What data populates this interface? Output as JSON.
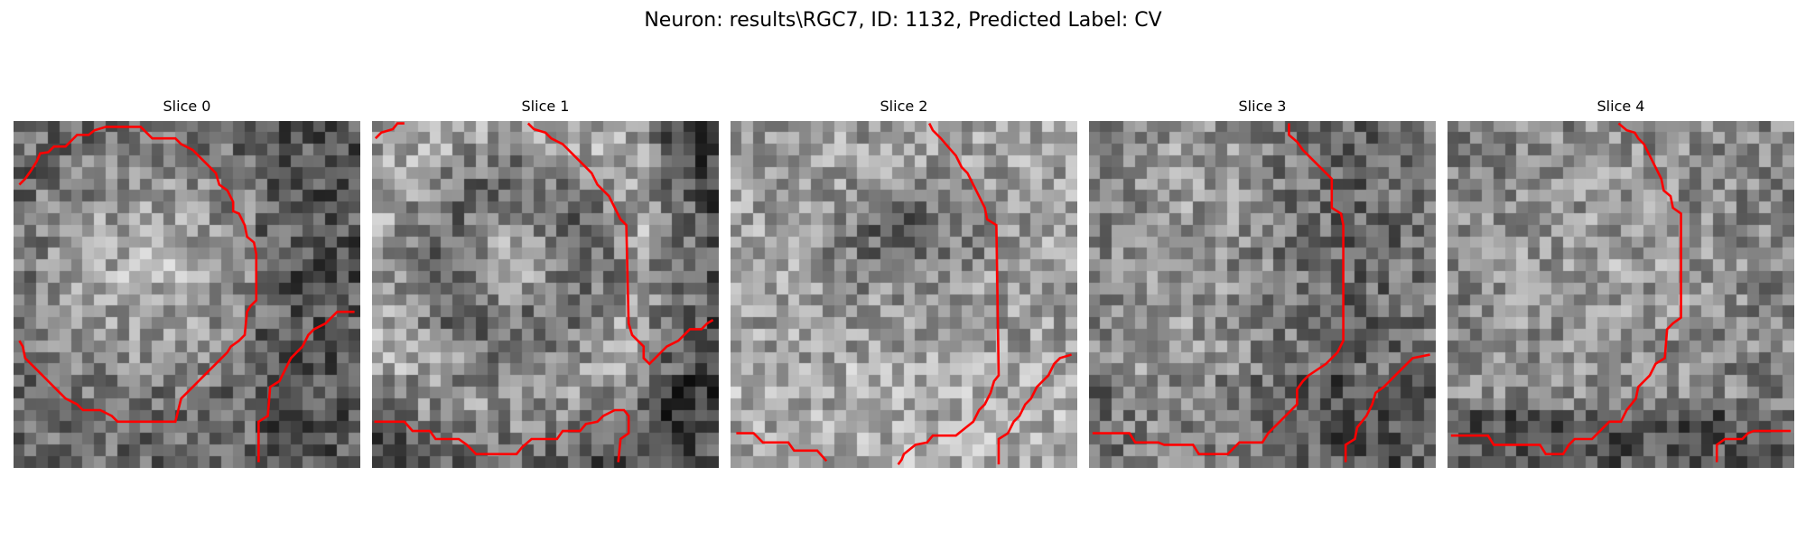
{
  "figure": {
    "title": "Neuron: results\\RGC7, ID: 1132, Predicted Label: CV"
  },
  "colors": {
    "contour": "#ff0000",
    "background": "#ffffff",
    "text": "#000000"
  },
  "image": {
    "grid": 30,
    "colormap": "gray"
  },
  "slices": [
    {
      "title": "Slice 0",
      "seed": 11,
      "texture": "bright-blob-center",
      "contours": [
        [
          [
            0.5,
            5.5
          ],
          [
            1.0,
            5.0
          ],
          [
            1.5,
            4.3
          ],
          [
            2.0,
            3.5
          ],
          [
            2.3,
            2.8
          ],
          [
            3.0,
            2.7
          ],
          [
            3.5,
            2.2
          ],
          [
            4.5,
            2.2
          ],
          [
            5.0,
            1.7
          ],
          [
            5.5,
            1.2
          ],
          [
            6.5,
            1.2
          ],
          [
            7.0,
            0.8
          ],
          [
            8.0,
            0.5
          ],
          [
            11.0,
            0.5
          ],
          [
            11.5,
            1.0
          ],
          [
            12.0,
            1.5
          ],
          [
            14.0,
            1.5
          ],
          [
            14.5,
            2.0
          ],
          [
            15.5,
            2.5
          ],
          [
            16.0,
            3.0
          ],
          [
            16.5,
            3.5
          ],
          [
            17.0,
            4.0
          ],
          [
            17.5,
            4.5
          ],
          [
            17.8,
            5.5
          ],
          [
            18.5,
            6.0
          ],
          [
            19.0,
            7.0
          ],
          [
            19.0,
            7.8
          ],
          [
            19.5,
            8.0
          ],
          [
            20.0,
            9.0
          ],
          [
            20.2,
            10.0
          ],
          [
            20.8,
            10.5
          ],
          [
            21.0,
            11.5
          ],
          [
            21.0,
            15.5
          ],
          [
            20.5,
            16.0
          ],
          [
            20.2,
            16.5
          ],
          [
            20.0,
            18.5
          ],
          [
            19.5,
            19.0
          ],
          [
            18.8,
            19.5
          ],
          [
            18.5,
            20.0
          ],
          [
            18.0,
            20.5
          ],
          [
            17.5,
            21.0
          ],
          [
            17.0,
            21.5
          ],
          [
            16.5,
            22.0
          ],
          [
            16.0,
            22.5
          ],
          [
            15.5,
            23.0
          ],
          [
            15.0,
            23.5
          ],
          [
            14.5,
            24.0
          ],
          [
            14.0,
            26.0
          ],
          [
            9.0,
            26.0
          ],
          [
            8.5,
            25.5
          ],
          [
            7.5,
            25.0
          ],
          [
            6.0,
            25.0
          ],
          [
            5.5,
            24.5
          ],
          [
            4.5,
            24.0
          ],
          [
            4.0,
            23.5
          ],
          [
            3.5,
            23.0
          ],
          [
            3.0,
            22.5
          ],
          [
            2.5,
            22.0
          ],
          [
            2.0,
            21.5
          ],
          [
            1.5,
            21.0
          ],
          [
            1.0,
            20.5
          ],
          [
            0.8,
            19.5
          ],
          [
            0.5,
            19.0
          ]
        ],
        [
          [
            21.2,
            29.5
          ],
          [
            21.2,
            26.0
          ],
          [
            22.0,
            25.5
          ],
          [
            22.2,
            23.0
          ],
          [
            23.0,
            22.5
          ],
          [
            23.5,
            21.5
          ],
          [
            24.0,
            20.5
          ],
          [
            24.5,
            20.0
          ],
          [
            25.0,
            19.5
          ],
          [
            25.5,
            18.5
          ],
          [
            26.0,
            18.0
          ],
          [
            27.0,
            17.5
          ],
          [
            27.5,
            17.0
          ],
          [
            28.0,
            16.5
          ],
          [
            29.5,
            16.5
          ]
        ]
      ]
    },
    {
      "title": "Slice 1",
      "seed": 23,
      "texture": "ring-dark-right",
      "contours": [
        [
          [
            0.3,
            1.5
          ],
          [
            0.8,
            1.0
          ],
          [
            1.8,
            0.7
          ],
          [
            2.2,
            0.2
          ],
          [
            2.8,
            0.2
          ]
        ],
        [
          [
            13.5,
            0.2
          ],
          [
            14.0,
            0.7
          ],
          [
            15.0,
            1.0
          ],
          [
            15.5,
            1.5
          ],
          [
            16.5,
            2.0
          ],
          [
            17.0,
            2.5
          ],
          [
            17.5,
            3.0
          ],
          [
            18.0,
            3.5
          ],
          [
            18.5,
            4.0
          ],
          [
            19.0,
            4.5
          ],
          [
            19.5,
            5.5
          ],
          [
            20.0,
            6.0
          ],
          [
            20.5,
            6.5
          ],
          [
            21.0,
            7.5
          ],
          [
            21.5,
            8.5
          ],
          [
            22.0,
            9.0
          ],
          [
            22.2,
            17.5
          ],
          [
            22.5,
            18.5
          ],
          [
            23.0,
            19.0
          ],
          [
            23.5,
            19.5
          ],
          [
            23.5,
            20.5
          ],
          [
            24.0,
            21.0
          ],
          [
            24.5,
            20.5
          ],
          [
            25.0,
            20.0
          ],
          [
            25.5,
            19.5
          ],
          [
            26.5,
            19.0
          ],
          [
            27.0,
            18.5
          ],
          [
            27.5,
            18.0
          ],
          [
            28.5,
            18.0
          ],
          [
            29.0,
            17.5
          ],
          [
            29.5,
            17.2
          ]
        ],
        [
          [
            0.2,
            26.0
          ],
          [
            2.8,
            26.0
          ],
          [
            3.5,
            26.8
          ],
          [
            5.0,
            26.8
          ],
          [
            5.5,
            27.5
          ],
          [
            7.5,
            27.5
          ],
          [
            8.2,
            28.0
          ],
          [
            9.0,
            28.8
          ],
          [
            12.5,
            28.8
          ],
          [
            13.0,
            28.2
          ],
          [
            13.8,
            27.5
          ],
          [
            16.0,
            27.5
          ],
          [
            16.5,
            26.8
          ],
          [
            18.0,
            26.8
          ],
          [
            18.5,
            26.2
          ],
          [
            19.5,
            26.0
          ],
          [
            20.0,
            25.5
          ],
          [
            21.0,
            25.0
          ],
          [
            21.8,
            25.0
          ],
          [
            22.2,
            25.5
          ],
          [
            22.2,
            27.0
          ],
          [
            21.5,
            27.5
          ],
          [
            21.3,
            29.5
          ]
        ]
      ]
    },
    {
      "title": "Slice 2",
      "seed": 37,
      "texture": "dark-band-center",
      "contours": [
        [
          [
            17.2,
            0.2
          ],
          [
            17.5,
            0.8
          ],
          [
            18.2,
            1.5
          ],
          [
            18.8,
            2.2
          ],
          [
            19.5,
            3.0
          ],
          [
            20.0,
            4.0
          ],
          [
            20.5,
            4.5
          ],
          [
            21.0,
            5.5
          ],
          [
            21.5,
            6.5
          ],
          [
            22.0,
            7.5
          ],
          [
            22.2,
            8.5
          ],
          [
            23.0,
            9.0
          ],
          [
            23.2,
            22.0
          ],
          [
            22.8,
            22.5
          ],
          [
            22.5,
            23.5
          ],
          [
            22.0,
            24.5
          ],
          [
            21.5,
            25.0
          ],
          [
            21.0,
            26.0
          ],
          [
            20.0,
            26.8
          ],
          [
            19.5,
            27.2
          ],
          [
            17.5,
            27.2
          ],
          [
            17.0,
            27.8
          ],
          [
            16.0,
            28.0
          ],
          [
            15.0,
            28.8
          ],
          [
            14.8,
            29.3
          ],
          [
            14.5,
            29.7
          ]
        ],
        [
          [
            0.5,
            27.0
          ],
          [
            2.0,
            27.0
          ],
          [
            2.8,
            27.8
          ],
          [
            5.0,
            27.8
          ],
          [
            5.5,
            28.5
          ],
          [
            7.5,
            28.5
          ],
          [
            8.3,
            29.4
          ]
        ],
        [
          [
            23.2,
            29.7
          ],
          [
            23.2,
            27.5
          ],
          [
            24.0,
            27.0
          ],
          [
            24.5,
            26.0
          ],
          [
            25.0,
            25.5
          ],
          [
            25.5,
            24.5
          ],
          [
            26.0,
            24.0
          ],
          [
            26.5,
            23.0
          ],
          [
            27.0,
            22.5
          ],
          [
            27.5,
            22.0
          ],
          [
            28.0,
            21.0
          ],
          [
            28.5,
            20.5
          ],
          [
            29.5,
            20.2
          ]
        ]
      ]
    },
    {
      "title": "Slice 3",
      "seed": 53,
      "texture": "speckled-dark-left",
      "contours": [
        [
          [
            17.3,
            0.2
          ],
          [
            17.3,
            1.2
          ],
          [
            18.0,
            1.8
          ],
          [
            18.5,
            2.5
          ],
          [
            19.0,
            3.0
          ],
          [
            19.5,
            3.5
          ],
          [
            20.0,
            4.0
          ],
          [
            20.5,
            4.5
          ],
          [
            21.0,
            5.0
          ],
          [
            21.0,
            7.5
          ],
          [
            21.8,
            8.0
          ],
          [
            22.0,
            9.0
          ],
          [
            22.0,
            19.0
          ],
          [
            21.5,
            20.0
          ],
          [
            21.0,
            20.5
          ],
          [
            20.5,
            21.0
          ],
          [
            19.0,
            22.0
          ],
          [
            18.5,
            22.5
          ],
          [
            18.0,
            23.2
          ],
          [
            18.0,
            24.5
          ],
          [
            17.5,
            25.0
          ],
          [
            17.0,
            25.5
          ],
          [
            16.5,
            26.0
          ],
          [
            16.0,
            26.5
          ],
          [
            15.5,
            27.0
          ],
          [
            15.0,
            27.8
          ],
          [
            13.0,
            27.8
          ],
          [
            12.5,
            28.3
          ],
          [
            12.0,
            28.8
          ],
          [
            9.5,
            28.8
          ],
          [
            9.0,
            28.0
          ],
          [
            6.5,
            28.0
          ],
          [
            6.0,
            27.8
          ],
          [
            4.0,
            27.8
          ],
          [
            3.5,
            27.0
          ],
          [
            0.3,
            27.0
          ]
        ],
        [
          [
            22.2,
            29.5
          ],
          [
            22.2,
            28.0
          ],
          [
            23.0,
            27.5
          ],
          [
            23.2,
            26.5
          ],
          [
            24.0,
            25.5
          ],
          [
            24.5,
            24.5
          ],
          [
            24.8,
            23.5
          ],
          [
            25.5,
            23.0
          ],
          [
            26.0,
            22.5
          ],
          [
            26.5,
            22.0
          ],
          [
            27.0,
            21.5
          ],
          [
            27.5,
            21.0
          ],
          [
            28.0,
            20.5
          ],
          [
            29.5,
            20.2
          ]
        ]
      ]
    },
    {
      "title": "Slice 4",
      "seed": 71,
      "texture": "soft-center-dark-bottom",
      "contours": [
        [
          [
            14.8,
            0.2
          ],
          [
            15.5,
            0.8
          ],
          [
            16.2,
            1.0
          ],
          [
            16.5,
            1.5
          ],
          [
            17.0,
            2.0
          ],
          [
            17.5,
            3.0
          ],
          [
            18.0,
            4.0
          ],
          [
            18.5,
            5.0
          ],
          [
            18.7,
            6.0
          ],
          [
            19.3,
            6.5
          ],
          [
            19.5,
            7.5
          ],
          [
            20.2,
            8.0
          ],
          [
            20.2,
            17.0
          ],
          [
            19.5,
            17.5
          ],
          [
            19.0,
            18.0
          ],
          [
            18.8,
            20.5
          ],
          [
            18.0,
            21.0
          ],
          [
            17.5,
            22.0
          ],
          [
            17.0,
            22.5
          ],
          [
            16.5,
            23.0
          ],
          [
            16.3,
            24.0
          ],
          [
            15.5,
            25.0
          ],
          [
            15.0,
            26.0
          ],
          [
            14.0,
            26.0
          ],
          [
            13.5,
            26.5
          ],
          [
            13.0,
            27.0
          ],
          [
            12.5,
            27.5
          ],
          [
            11.0,
            27.5
          ],
          [
            10.5,
            28.0
          ],
          [
            10.0,
            28.8
          ],
          [
            8.5,
            28.8
          ],
          [
            8.0,
            28.0
          ],
          [
            4.0,
            28.0
          ],
          [
            3.5,
            27.2
          ],
          [
            0.3,
            27.2
          ]
        ],
        [
          [
            23.3,
            29.5
          ],
          [
            23.3,
            28.0
          ],
          [
            24.0,
            27.5
          ],
          [
            25.5,
            27.5
          ],
          [
            26.0,
            27.0
          ],
          [
            26.5,
            26.8
          ],
          [
            29.7,
            26.8
          ]
        ]
      ]
    }
  ]
}
